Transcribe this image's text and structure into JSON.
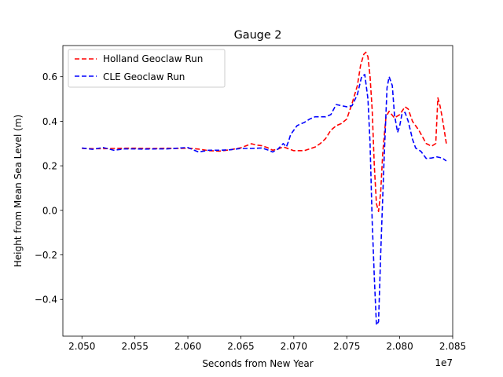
{
  "chart_data": {
    "type": "line",
    "title": "Gauge 2",
    "xlabel": "Seconds from New Year",
    "ylabel": "Height from Mean Sea Level (m)",
    "x_offset_label": "1e7",
    "xlim": [
      2.0482,
      2.085
    ],
    "ylim": [
      -0.565,
      0.74
    ],
    "x_ticks": [
      2.05,
      2.055,
      2.06,
      2.065,
      2.07,
      2.075,
      2.08,
      2.085
    ],
    "x_tick_labels": [
      "2.050",
      "2.055",
      "2.060",
      "2.065",
      "2.070",
      "2.075",
      "2.080",
      "2.085"
    ],
    "y_ticks": [
      -0.4,
      -0.2,
      0.0,
      0.2,
      0.4,
      0.6
    ],
    "y_tick_labels": [
      "−0.4",
      "−0.2",
      "0.0",
      "0.2",
      "0.4",
      "0.6"
    ],
    "grid": false,
    "legend_position": "top-left",
    "series": [
      {
        "name": "Holland Geoclaw Run",
        "color": "#ff0000",
        "x": [
          2.05,
          2.051,
          2.052,
          2.053,
          2.054,
          2.055,
          2.056,
          2.057,
          2.058,
          2.059,
          2.06,
          2.061,
          2.062,
          2.063,
          2.064,
          2.065,
          2.0655,
          2.066,
          2.0665,
          2.067,
          2.0675,
          2.068,
          2.0685,
          2.069,
          2.07,
          2.071,
          2.072,
          2.0725,
          2.073,
          2.0735,
          2.074,
          2.0745,
          2.075,
          2.0755,
          2.076,
          2.0763,
          2.0766,
          2.0768,
          2.077,
          2.0772,
          2.0774,
          2.0776,
          2.0778,
          2.078,
          2.0782,
          2.0784,
          2.0787,
          2.079,
          2.0795,
          2.08,
          2.0805,
          2.0808,
          2.0812,
          2.0818,
          2.0825,
          2.083,
          2.0834,
          2.0836,
          2.0838,
          2.084,
          2.0842,
          2.0844
        ],
        "y": [
          0.278,
          0.277,
          0.277,
          0.278,
          0.279,
          0.279,
          0.278,
          0.278,
          0.279,
          0.278,
          0.279,
          0.275,
          0.268,
          0.266,
          0.272,
          0.281,
          0.29,
          0.299,
          0.293,
          0.29,
          0.282,
          0.27,
          0.275,
          0.285,
          0.268,
          0.268,
          0.284,
          0.3,
          0.322,
          0.36,
          0.38,
          0.39,
          0.41,
          0.48,
          0.56,
          0.65,
          0.7,
          0.71,
          0.69,
          0.6,
          0.45,
          0.2,
          0.03,
          -0.005,
          0.08,
          0.26,
          0.42,
          0.445,
          0.415,
          0.43,
          0.465,
          0.455,
          0.4,
          0.36,
          0.3,
          0.288,
          0.3,
          0.505,
          0.47,
          0.42,
          0.36,
          0.3
        ]
      },
      {
        "name": "CLE Geoclaw Run",
        "color": "#0000ff",
        "x": [
          2.05,
          2.051,
          2.052,
          2.053,
          2.054,
          2.055,
          2.056,
          2.057,
          2.058,
          2.059,
          2.06,
          2.061,
          2.062,
          2.063,
          2.064,
          2.065,
          2.066,
          2.067,
          2.0675,
          2.068,
          2.0685,
          2.0688,
          2.069,
          2.0693,
          2.0695,
          2.0697,
          2.07,
          2.0703,
          2.0705,
          2.071,
          2.0715,
          2.072,
          2.073,
          2.0735,
          2.074,
          2.0745,
          2.075,
          2.0755,
          2.076,
          2.0764,
          2.0767,
          2.077,
          2.0772,
          2.0774,
          2.0776,
          2.0778,
          2.078,
          2.0782,
          2.0785,
          2.0788,
          2.079,
          2.0793,
          2.0795,
          2.0798,
          2.08,
          2.0802,
          2.0805,
          2.0808,
          2.0812,
          2.0815,
          2.082,
          2.0825,
          2.083,
          2.0835,
          2.084,
          2.0844
        ],
        "y": [
          0.28,
          0.274,
          0.282,
          0.27,
          0.276,
          0.276,
          0.275,
          0.276,
          0.276,
          0.279,
          0.282,
          0.262,
          0.27,
          0.27,
          0.272,
          0.278,
          0.278,
          0.28,
          0.272,
          0.262,
          0.275,
          0.29,
          0.3,
          0.285,
          0.31,
          0.34,
          0.36,
          0.38,
          0.385,
          0.395,
          0.41,
          0.42,
          0.42,
          0.43,
          0.475,
          0.47,
          0.465,
          0.47,
          0.52,
          0.6,
          0.61,
          0.5,
          0.3,
          -0.05,
          -0.3,
          -0.515,
          -0.5,
          -0.2,
          0.2,
          0.55,
          0.6,
          0.56,
          0.43,
          0.35,
          0.38,
          0.43,
          0.44,
          0.4,
          0.32,
          0.28,
          0.265,
          0.233,
          0.235,
          0.24,
          0.235,
          0.222
        ]
      }
    ]
  }
}
